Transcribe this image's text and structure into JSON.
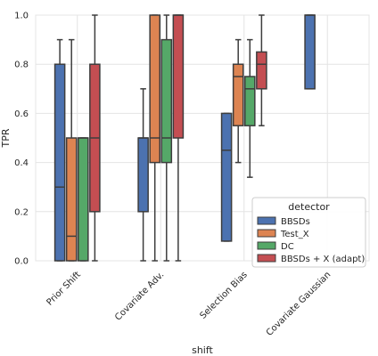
{
  "chart_data": {
    "type": "box",
    "xlabel": "shift",
    "ylabel": "TPR",
    "ylim": [
      0,
      1
    ],
    "yticks": [
      0.0,
      0.2,
      0.4,
      0.6,
      0.8,
      1.0
    ],
    "ytick_labels": [
      "0.0",
      "0.2",
      "0.4",
      "0.6",
      "0.8",
      "1.0"
    ],
    "grid": true,
    "categories": [
      "Prior Shift",
      "Covariate Adv.",
      "Selection Bias",
      "Covariate Gaussian"
    ],
    "legend": {
      "title": "detector",
      "placement": "lower-right"
    },
    "series": [
      {
        "name": "BBSDs",
        "color": "#4C72B0",
        "boxes": [
          {
            "whislo": 0.0,
            "q1": 0.0,
            "med": 0.3,
            "q3": 0.8,
            "whishi": 0.9
          },
          {
            "whislo": 0.0,
            "q1": 0.2,
            "med": 0.5,
            "q3": 0.5,
            "whishi": 0.7
          },
          {
            "whislo": 0.08,
            "q1": 0.08,
            "med": 0.45,
            "q3": 0.6,
            "whishi": 0.6
          },
          {
            "whislo": 0.7,
            "q1": 0.7,
            "med": 1.0,
            "q3": 1.0,
            "whishi": 1.0
          }
        ]
      },
      {
        "name": "Test_X",
        "color": "#DD8452",
        "boxes": [
          {
            "whislo": 0.0,
            "q1": 0.0,
            "med": 0.1,
            "q3": 0.5,
            "whishi": 0.9
          },
          {
            "whislo": 0.0,
            "q1": 0.4,
            "med": 0.5,
            "q3": 1.0,
            "whishi": 1.0
          },
          {
            "whislo": 0.4,
            "q1": 0.55,
            "med": 0.75,
            "q3": 0.8,
            "whishi": 0.9
          },
          null
        ]
      },
      {
        "name": "DC",
        "color": "#55A868",
        "boxes": [
          {
            "whislo": 0.0,
            "q1": 0.0,
            "med": 0.5,
            "q3": 0.5,
            "whishi": 0.5
          },
          {
            "whislo": 0.0,
            "q1": 0.4,
            "med": 0.5,
            "q3": 0.9,
            "whishi": 1.0
          },
          {
            "whislo": 0.34,
            "q1": 0.55,
            "med": 0.7,
            "q3": 0.75,
            "whishi": 0.9
          },
          null
        ]
      },
      {
        "name": "BBSDs + X (adapt)",
        "color": "#C44E52",
        "boxes": [
          {
            "whislo": 0.0,
            "q1": 0.2,
            "med": 0.5,
            "q3": 0.8,
            "whishi": 1.0
          },
          {
            "whislo": 0.0,
            "q1": 0.5,
            "med": 1.0,
            "q3": 1.0,
            "whishi": 1.0
          },
          {
            "whislo": 0.55,
            "q1": 0.7,
            "med": 0.8,
            "q3": 0.85,
            "whishi": 1.0
          },
          null
        ]
      }
    ]
  }
}
